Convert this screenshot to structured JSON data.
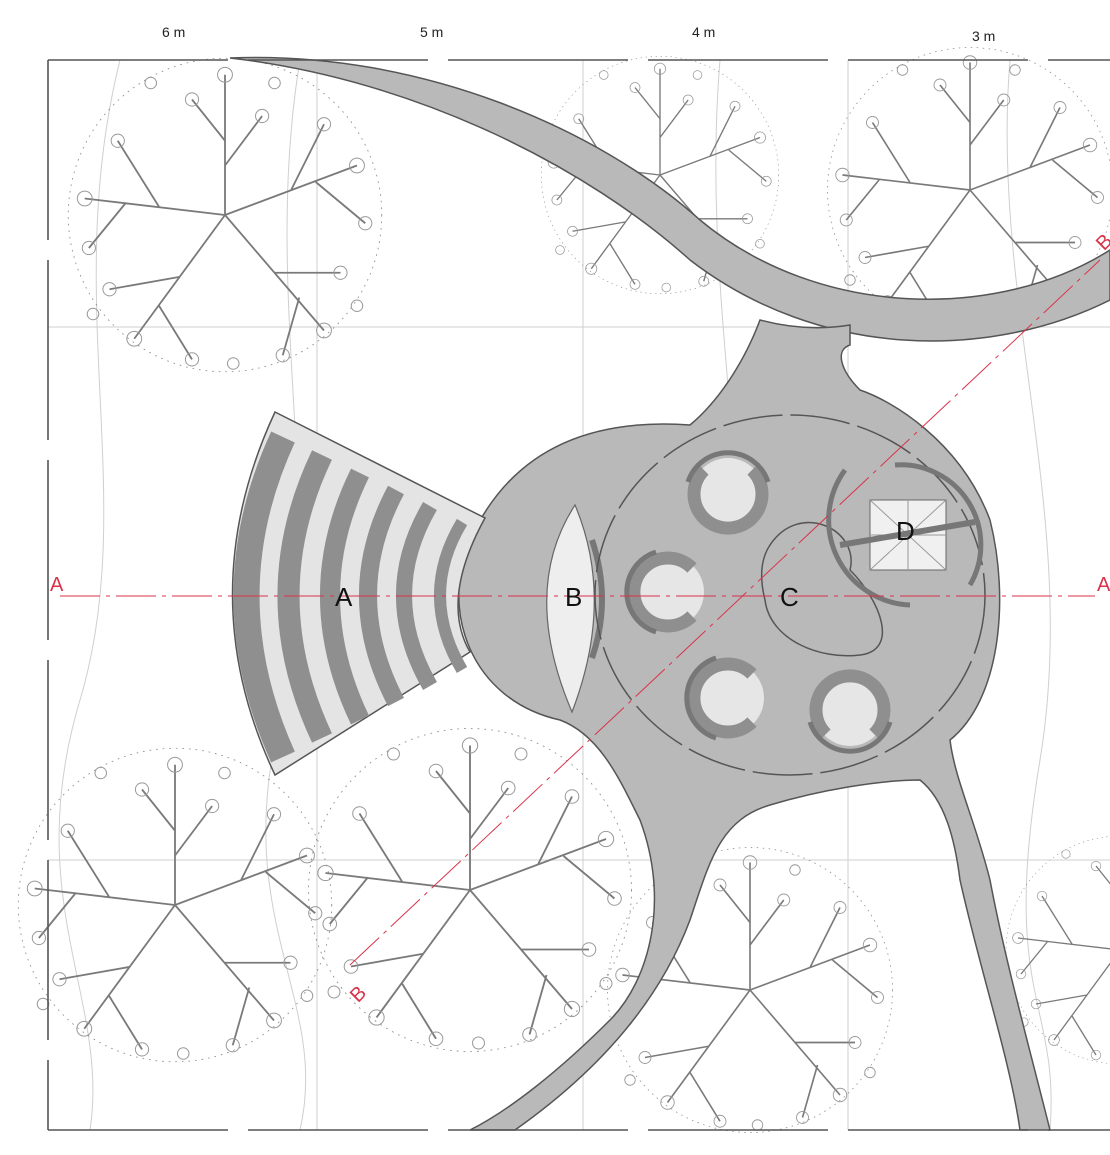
{
  "dimensions": [
    "6 m",
    "5 m",
    "4 m",
    "3 m"
  ],
  "zones": [
    "A",
    "B",
    "C",
    "D"
  ],
  "section_marks": {
    "a_left": "A",
    "a_right": "A",
    "b_top": "B",
    "b_bottom": "B"
  },
  "colors": {
    "paving": "#b9b9b9",
    "paving_edge": "#555555",
    "seat_dark": "#8f8f8f",
    "seat_light": "#e4e4e4",
    "frame": "#555555",
    "grid": "#cfcfcf",
    "section_line": "#d9334a",
    "tree_line": "#777777"
  }
}
